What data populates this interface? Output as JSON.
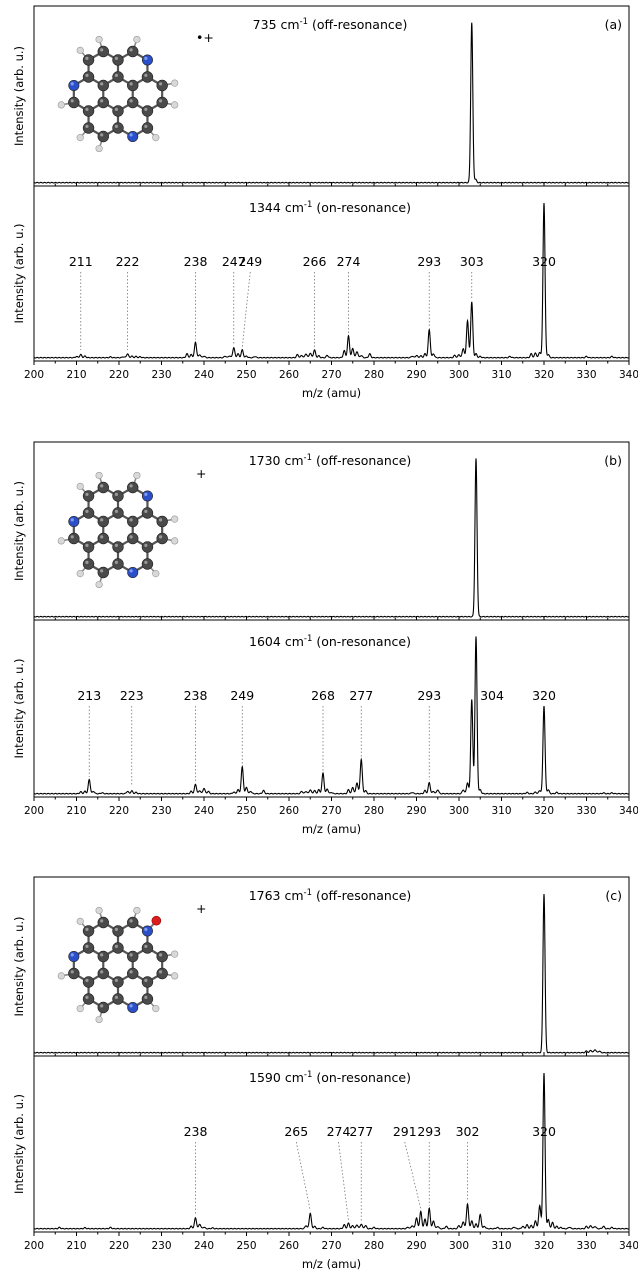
{
  "chart_data": [
    {
      "type": "line",
      "panel": "(a)",
      "xlabel": "m/z (amu)",
      "xlim": [
        200,
        340
      ],
      "xticks": [
        200,
        210,
        220,
        230,
        240,
        250,
        260,
        270,
        280,
        290,
        300,
        310,
        320,
        330,
        340
      ],
      "molecule_charge": "•+",
      "top": {
        "ylabel": "Intensity (arb. u.)",
        "annotation": "735 cm-1 (off-resonance)",
        "peaks": [
          [
            303,
            1.0
          ],
          [
            303.9,
            0.02
          ]
        ]
      },
      "bottom": {
        "ylabel": "Intensity (arb. u.)",
        "annotation": "1344 cm-1 (on-resonance)",
        "peak_labels": [
          "211",
          "222",
          "238",
          "247",
          "249",
          "266",
          "274",
          "293",
          "303",
          "320"
        ],
        "label_positions": [
          211,
          222,
          238,
          247,
          249,
          266,
          274,
          293,
          303,
          320
        ],
        "peaks": [
          [
            210,
            0.008
          ],
          [
            211,
            0.02
          ],
          [
            212,
            0.01
          ],
          [
            218,
            0.005
          ],
          [
            221,
            0.006
          ],
          [
            222,
            0.025
          ],
          [
            223,
            0.01
          ],
          [
            224,
            0.008
          ],
          [
            225,
            0.006
          ],
          [
            236,
            0.025
          ],
          [
            237,
            0.02
          ],
          [
            238,
            0.1
          ],
          [
            239,
            0.02
          ],
          [
            240,
            0.01
          ],
          [
            245,
            0.01
          ],
          [
            246,
            0.012
          ],
          [
            247,
            0.065
          ],
          [
            248,
            0.025
          ],
          [
            249,
            0.05
          ],
          [
            250,
            0.01
          ],
          [
            252,
            0.008
          ],
          [
            262,
            0.02
          ],
          [
            263,
            0.015
          ],
          [
            264,
            0.025
          ],
          [
            265,
            0.03
          ],
          [
            266,
            0.05
          ],
          [
            267,
            0.012
          ],
          [
            269,
            0.015
          ],
          [
            273,
            0.045
          ],
          [
            274,
            0.14
          ],
          [
            275,
            0.06
          ],
          [
            276,
            0.04
          ],
          [
            277,
            0.015
          ],
          [
            279,
            0.025
          ],
          [
            289,
            0.01
          ],
          [
            290,
            0.015
          ],
          [
            291,
            0.012
          ],
          [
            292,
            0.025
          ],
          [
            293,
            0.18
          ],
          [
            294,
            0.025
          ],
          [
            299,
            0.015
          ],
          [
            300,
            0.02
          ],
          [
            301,
            0.06
          ],
          [
            302,
            0.24
          ],
          [
            303,
            0.36
          ],
          [
            304,
            0.025
          ],
          [
            305,
            0.008
          ],
          [
            312,
            0.008
          ],
          [
            317,
            0.025
          ],
          [
            318,
            0.03
          ],
          [
            319,
            0.035
          ],
          [
            320,
            1.0
          ],
          [
            321,
            0.02
          ],
          [
            330,
            0.008
          ],
          [
            336,
            0.008
          ]
        ]
      }
    },
    {
      "type": "line",
      "panel": "(b)",
      "xlabel": "m/z (amu)",
      "xlim": [
        200,
        340
      ],
      "xticks": [
        200,
        210,
        220,
        230,
        240,
        250,
        260,
        270,
        280,
        290,
        300,
        310,
        320,
        330,
        340
      ],
      "molecule_charge": "+",
      "top": {
        "ylabel": "Intensity (arb. u.)",
        "annotation": "1730 cm-1 (off-resonance)",
        "peaks": [
          [
            304,
            1.0
          ]
        ]
      },
      "bottom": {
        "ylabel": "Intensity (arb. u.)",
        "annotation": "1604 cm-1 (on-resonance)",
        "peak_labels": [
          "213",
          "223",
          "238",
          "249",
          "268",
          "277",
          "293",
          "304",
          "320"
        ],
        "label_positions": [
          213,
          223,
          238,
          249,
          268,
          277,
          293,
          304,
          320
        ],
        "peaks": [
          [
            211,
            0.012
          ],
          [
            212,
            0.015
          ],
          [
            213,
            0.09
          ],
          [
            214,
            0.015
          ],
          [
            216,
            0.006
          ],
          [
            222,
            0.015
          ],
          [
            223,
            0.018
          ],
          [
            224,
            0.008
          ],
          [
            237,
            0.015
          ],
          [
            238,
            0.06
          ],
          [
            239,
            0.02
          ],
          [
            240,
            0.035
          ],
          [
            241,
            0.015
          ],
          [
            247,
            0.01
          ],
          [
            248,
            0.025
          ],
          [
            249,
            0.17
          ],
          [
            250,
            0.04
          ],
          [
            251,
            0.015
          ],
          [
            254,
            0.02
          ],
          [
            263,
            0.015
          ],
          [
            264,
            0.015
          ],
          [
            265,
            0.025
          ],
          [
            266,
            0.02
          ],
          [
            267,
            0.025
          ],
          [
            268,
            0.13
          ],
          [
            269,
            0.03
          ],
          [
            270,
            0.008
          ],
          [
            274,
            0.025
          ],
          [
            275,
            0.04
          ],
          [
            276,
            0.07
          ],
          [
            277,
            0.22
          ],
          [
            278,
            0.02
          ],
          [
            289,
            0.008
          ],
          [
            292,
            0.02
          ],
          [
            293,
            0.07
          ],
          [
            294,
            0.015
          ],
          [
            295,
            0.025
          ],
          [
            301,
            0.025
          ],
          [
            302,
            0.07
          ],
          [
            303,
            0.6
          ],
          [
            304,
            1.0
          ],
          [
            305,
            0.025
          ],
          [
            316,
            0.008
          ],
          [
            318,
            0.01
          ],
          [
            319,
            0.02
          ],
          [
            320,
            0.56
          ],
          [
            321,
            0.025
          ],
          [
            323,
            0.008
          ],
          [
            334,
            0.005
          ],
          [
            336,
            0.005
          ]
        ]
      }
    },
    {
      "type": "line",
      "panel": "(c)",
      "xlabel": "m/z (amu)",
      "xlim": [
        200,
        340
      ],
      "xticks": [
        200,
        210,
        220,
        230,
        240,
        250,
        260,
        270,
        280,
        290,
        300,
        310,
        320,
        330,
        340
      ],
      "molecule_charge": "+",
      "top": {
        "ylabel": "Intensity (arb. u.)",
        "annotation": "1763 cm-1 (off-resonance)",
        "peaks": [
          [
            320,
            1.0
          ],
          [
            330,
            0.01
          ],
          [
            331,
            0.015
          ],
          [
            332,
            0.02
          ],
          [
            333,
            0.01
          ]
        ]
      },
      "bottom": {
        "ylabel": "Intensity (arb. u.)",
        "annotation": "1590 cm-1 (on-resonance)",
        "peak_labels": [
          "238",
          "265",
          "274",
          "277",
          "291",
          "293",
          "302",
          "320"
        ],
        "label_positions": [
          238,
          265,
          274,
          277,
          291,
          293,
          302,
          320
        ],
        "peaks": [
          [
            206,
            0.008
          ],
          [
            212,
            0.006
          ],
          [
            218,
            0.008
          ],
          [
            237,
            0.015
          ],
          [
            238,
            0.07
          ],
          [
            239,
            0.03
          ],
          [
            240,
            0.01
          ],
          [
            242,
            0.005
          ],
          [
            264,
            0.02
          ],
          [
            265,
            0.1
          ],
          [
            266,
            0.015
          ],
          [
            268,
            0.008
          ],
          [
            273,
            0.025
          ],
          [
            274,
            0.035
          ],
          [
            275,
            0.02
          ],
          [
            276,
            0.025
          ],
          [
            277,
            0.03
          ],
          [
            278,
            0.02
          ],
          [
            280,
            0.008
          ],
          [
            288,
            0.01
          ],
          [
            289,
            0.02
          ],
          [
            290,
            0.07
          ],
          [
            291,
            0.11
          ],
          [
            292,
            0.06
          ],
          [
            293,
            0.13
          ],
          [
            294,
            0.05
          ],
          [
            295,
            0.015
          ],
          [
            297,
            0.015
          ],
          [
            300,
            0.02
          ],
          [
            301,
            0.045
          ],
          [
            302,
            0.16
          ],
          [
            303,
            0.05
          ],
          [
            304,
            0.03
          ],
          [
            305,
            0.09
          ],
          [
            306,
            0.015
          ],
          [
            309,
            0.008
          ],
          [
            313,
            0.01
          ],
          [
            315,
            0.015
          ],
          [
            316,
            0.025
          ],
          [
            317,
            0.02
          ],
          [
            318,
            0.05
          ],
          [
            319,
            0.15
          ],
          [
            320,
            1.0
          ],
          [
            321,
            0.06
          ],
          [
            322,
            0.04
          ],
          [
            323,
            0.015
          ],
          [
            324,
            0.008
          ],
          [
            326,
            0.01
          ],
          [
            330,
            0.015
          ],
          [
            331,
            0.02
          ],
          [
            332,
            0.015
          ],
          [
            334,
            0.015
          ],
          [
            336,
            0.008
          ]
        ]
      }
    }
  ]
}
